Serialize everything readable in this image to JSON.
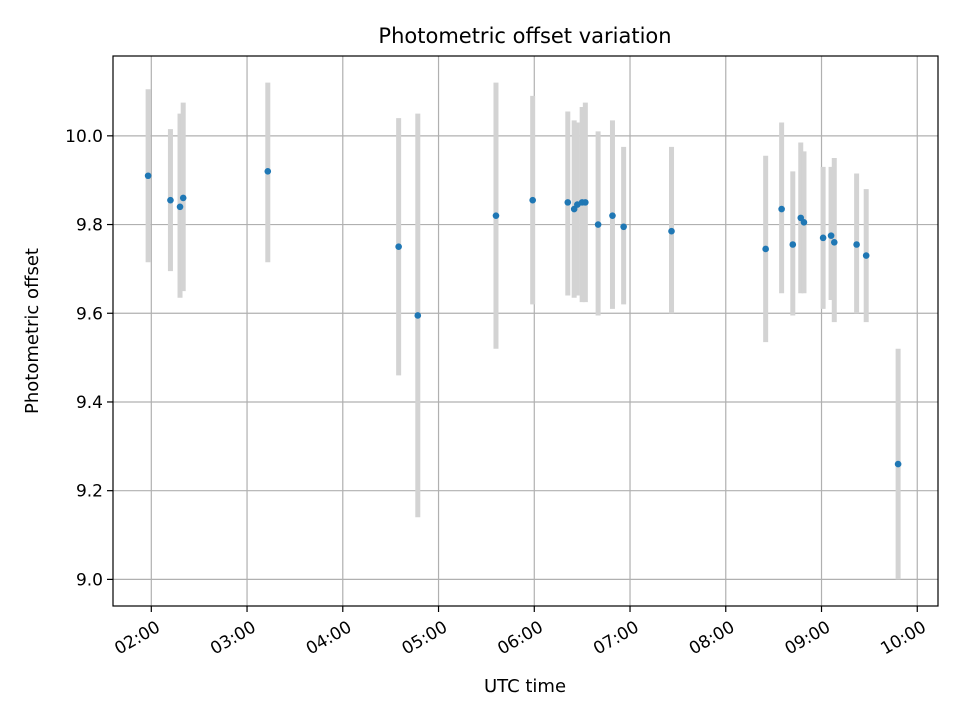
{
  "chart_data": {
    "type": "scatter",
    "title": "Photometric offset variation",
    "xlabel": "UTC time",
    "ylabel": "Photometric offset",
    "x_ticks": [
      "02:00",
      "03:00",
      "04:00",
      "05:00",
      "06:00",
      "07:00",
      "08:00",
      "09:00",
      "10:00"
    ],
    "y_ticks": [
      "9.0",
      "9.2",
      "9.4",
      "9.6",
      "9.8",
      "10.0"
    ],
    "xlim": [
      "01:36",
      "10:13"
    ],
    "ylim": [
      8.94,
      10.18
    ],
    "grid": true,
    "legend": "none",
    "colors": {
      "point": "#1f77b4",
      "errorbar": "#d3d3d3",
      "grid": "#b0b0b0",
      "axes": "#000000"
    },
    "series": [
      {
        "points": [
          {
            "x": "01:58",
            "y": 9.91,
            "yerr_low": 9.715,
            "yerr_high": 10.105
          },
          {
            "x": "02:12",
            "y": 9.855,
            "yerr_low": 9.695,
            "yerr_high": 10.015
          },
          {
            "x": "02:18",
            "y": 9.84,
            "yerr_low": 9.635,
            "yerr_high": 10.05
          },
          {
            "x": "02:20",
            "y": 9.86,
            "yerr_low": 9.65,
            "yerr_high": 10.075
          },
          {
            "x": "03:13",
            "y": 9.92,
            "yerr_low": 9.715,
            "yerr_high": 10.12
          },
          {
            "x": "04:35",
            "y": 9.75,
            "yerr_low": 9.46,
            "yerr_high": 10.04
          },
          {
            "x": "04:47",
            "y": 9.595,
            "yerr_low": 9.14,
            "yerr_high": 10.05
          },
          {
            "x": "05:36",
            "y": 9.82,
            "yerr_low": 9.52,
            "yerr_high": 10.12
          },
          {
            "x": "05:59",
            "y": 9.855,
            "yerr_low": 9.62,
            "yerr_high": 10.09
          },
          {
            "x": "06:21",
            "y": 9.85,
            "yerr_low": 9.64,
            "yerr_high": 10.055
          },
          {
            "x": "06:25",
            "y": 9.835,
            "yerr_low": 9.635,
            "yerr_high": 10.035
          },
          {
            "x": "06:27",
            "y": 9.845,
            "yerr_low": 9.64,
            "yerr_high": 10.03
          },
          {
            "x": "06:30",
            "y": 9.85,
            "yerr_low": 9.625,
            "yerr_high": 10.065
          },
          {
            "x": "06:32",
            "y": 9.85,
            "yerr_low": 9.625,
            "yerr_high": 10.075
          },
          {
            "x": "06:40",
            "y": 9.8,
            "yerr_low": 9.595,
            "yerr_high": 10.01
          },
          {
            "x": "06:49",
            "y": 9.82,
            "yerr_low": 9.61,
            "yerr_high": 10.035
          },
          {
            "x": "06:56",
            "y": 9.795,
            "yerr_low": 9.62,
            "yerr_high": 9.975
          },
          {
            "x": "07:26",
            "y": 9.785,
            "yerr_low": 9.6,
            "yerr_high": 9.975
          },
          {
            "x": "08:25",
            "y": 9.745,
            "yerr_low": 9.535,
            "yerr_high": 9.955
          },
          {
            "x": "08:35",
            "y": 9.835,
            "yerr_low": 9.645,
            "yerr_high": 10.03
          },
          {
            "x": "08:42",
            "y": 9.755,
            "yerr_low": 9.595,
            "yerr_high": 9.92
          },
          {
            "x": "08:47",
            "y": 9.815,
            "yerr_low": 9.645,
            "yerr_high": 9.985
          },
          {
            "x": "08:49",
            "y": 9.805,
            "yerr_low": 9.645,
            "yerr_high": 9.965
          },
          {
            "x": "09:01",
            "y": 9.77,
            "yerr_low": 9.61,
            "yerr_high": 9.93
          },
          {
            "x": "09:06",
            "y": 9.775,
            "yerr_low": 9.63,
            "yerr_high": 9.93
          },
          {
            "x": "09:08",
            "y": 9.76,
            "yerr_low": 9.58,
            "yerr_high": 9.95
          },
          {
            "x": "09:22",
            "y": 9.755,
            "yerr_low": 9.6,
            "yerr_high": 9.915
          },
          {
            "x": "09:28",
            "y": 9.73,
            "yerr_low": 9.58,
            "yerr_high": 9.88
          },
          {
            "x": "09:48",
            "y": 9.26,
            "yerr_low": 9.0,
            "yerr_high": 9.52
          }
        ]
      }
    ]
  }
}
